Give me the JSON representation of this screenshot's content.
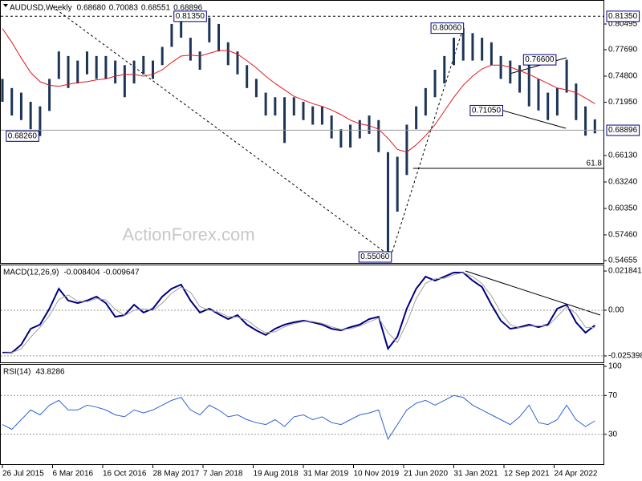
{
  "chart_data": [
    {
      "type": "hilo",
      "title": "AUDUSD,Weekly",
      "header_values": [
        {
          "value": 0.6868,
          "label": "0.68680"
        },
        0.70083,
        0.68551,
        0.68896
      ],
      "watermark": "ActionForex.com",
      "color": "#1c3557",
      "x": [
        0,
        6,
        12,
        18,
        24,
        30,
        36,
        42,
        48,
        54,
        60,
        66,
        72,
        78,
        84,
        90,
        96,
        102,
        108,
        114,
        120,
        126,
        132,
        138,
        144,
        150,
        156,
        162,
        168,
        174,
        180,
        186,
        192,
        198,
        204,
        210,
        216,
        222,
        228,
        234,
        240,
        246,
        252,
        258,
        264,
        270,
        276,
        282,
        288,
        294,
        300,
        306,
        312,
        318,
        324,
        330,
        336,
        342,
        348,
        354,
        360,
        366,
        372,
        378
      ],
      "xlim": [
        0,
        384
      ],
      "high": [
        0.745,
        0.735,
        0.73,
        0.72,
        0.715,
        0.745,
        0.775,
        0.77,
        0.765,
        0.775,
        0.77,
        0.77,
        0.765,
        0.76,
        0.765,
        0.77,
        0.765,
        0.78,
        0.805,
        0.8135,
        0.79,
        0.775,
        0.812,
        0.805,
        0.785,
        0.775,
        0.76,
        0.745,
        0.73,
        0.725,
        0.725,
        0.725,
        0.72,
        0.715,
        0.715,
        0.705,
        0.69,
        0.695,
        0.7,
        0.705,
        0.7,
        0.665,
        0.66,
        0.695,
        0.715,
        0.735,
        0.755,
        0.77,
        0.79,
        0.8006,
        0.795,
        0.79,
        0.785,
        0.77,
        0.765,
        0.76,
        0.766,
        0.745,
        0.73,
        0.735,
        0.766,
        0.74,
        0.715,
        0.70083
      ],
      "low": [
        0.72,
        0.705,
        0.7,
        0.69,
        0.6826,
        0.71,
        0.745,
        0.735,
        0.74,
        0.75,
        0.745,
        0.745,
        0.74,
        0.725,
        0.74,
        0.75,
        0.745,
        0.76,
        0.78,
        0.79,
        0.765,
        0.755,
        0.785,
        0.775,
        0.76,
        0.75,
        0.735,
        0.725,
        0.705,
        0.705,
        0.675,
        0.705,
        0.7,
        0.695,
        0.695,
        0.68,
        0.67,
        0.67,
        0.68,
        0.685,
        0.665,
        0.5506,
        0.6,
        0.64,
        0.69,
        0.705,
        0.725,
        0.74,
        0.76,
        0.765,
        0.765,
        0.765,
        0.76,
        0.745,
        0.74,
        0.73,
        0.715,
        0.7105,
        0.7,
        0.705,
        0.73,
        0.7,
        0.683,
        0.68551
      ],
      "ma_color": "#e0191e",
      "ma_values": [
        0.8,
        0.785,
        0.768,
        0.752,
        0.742,
        0.738,
        0.737,
        0.739,
        0.741,
        0.742,
        0.744,
        0.745,
        0.748,
        0.75,
        0.75,
        0.748,
        0.75,
        0.755,
        0.763,
        0.77,
        0.771,
        0.77,
        0.773,
        0.776,
        0.776,
        0.772,
        0.765,
        0.757,
        0.748,
        0.74,
        0.733,
        0.726,
        0.722,
        0.718,
        0.715,
        0.711,
        0.706,
        0.7,
        0.696,
        0.694,
        0.69,
        0.68,
        0.668,
        0.665,
        0.673,
        0.683,
        0.695,
        0.71,
        0.725,
        0.738,
        0.748,
        0.756,
        0.76,
        0.76,
        0.758,
        0.754,
        0.75,
        0.745,
        0.74,
        0.735,
        0.733,
        0.73,
        0.724,
        0.718
      ],
      "ylim": [
        0.5448,
        0.8242
      ],
      "yticks": [
        0.80495,
        {
          "value": 0.7769,
          "label": "0.77690"
        },
        {
          "value": 0.748,
          "label": "0.74800"
        },
        {
          "value": 0.7195,
          "label": "0.71950"
        },
        {
          "value": 0.6613,
          "label": "0.66130"
        },
        {
          "value": 0.6324,
          "label": "0.63240"
        },
        {
          "value": 0.6035,
          "label": "0.60350"
        },
        {
          "value": 0.5746,
          "label": "0.57460"
        },
        0.54655
      ],
      "hline": {
        "value": 0.8135,
        "label": "0.81350"
      },
      "current": 0.68896,
      "fib_label": 61.8,
      "fib_level": 0.6473,
      "fib_start": 262,
      "annotations": [
        {
          "value": 0.8135,
          "label": "0.81350",
          "x": 130
        },
        {
          "value": 0.8006,
          "label": "0.80060",
          "x": 294
        },
        {
          "value": 0.766,
          "label": "0.76600",
          "x": 353
        },
        {
          "value": 0.7105,
          "label": "0.71050",
          "x": 319
        },
        {
          "value": 0.6826,
          "label": "0.68260",
          "x": 23
        },
        {
          "value": 0.5506,
          "label": "0.55060",
          "x": 248
        }
      ]
    },
    {
      "type": "line",
      "title": "MACD(12,26,9)",
      "header_values": [
        -0.008404,
        -0.009647
      ],
      "series": [
        {
          "color": "#000080",
          "width": 2,
          "values": [
            -0.0236,
            -0.0236,
            -0.0192,
            -0.0103,
            -0.008,
            0.0009,
            0.012,
            0.0054,
            0.004,
            0.0054,
            0.0076,
            0.004,
            -0.0036,
            -0.0027,
            0.0031,
            -0.0013,
            0.0009,
            0.0076,
            0.012,
            0.0143,
            0.0054,
            -0.0013,
            0.0009,
            -0.0022,
            -0.0049,
            -0.0027,
            -0.008,
            -0.0112,
            -0.0138,
            -0.0103,
            -0.008,
            -0.0067,
            -0.0058,
            -0.0067,
            -0.008,
            -0.0103,
            -0.0112,
            -0.0094,
            -0.008,
            -0.0049,
            -0.0036,
            -0.0214,
            -0.0147,
            0.0009,
            0.012,
            0.0187,
            0.0165,
            0.0187,
            0.021,
            0.021,
            0.0165,
            0.0129,
            0.0031,
            -0.0058,
            -0.0103,
            -0.0094,
            -0.008,
            -0.0094,
            -0.008,
            0.0009,
            0.0031,
            -0.0067,
            -0.0125,
            -0.008404
          ]
        },
        {
          "color": "#a0a0a0",
          "width": 1,
          "values": [
            -0.024,
            -0.0236,
            -0.0215,
            -0.015,
            -0.0095,
            -0.003,
            0.006,
            0.0085,
            0.005,
            0.0048,
            0.0065,
            0.0058,
            0.0005,
            -0.003,
            0,
            0.0008,
            -0.0002,
            0.004,
            0.0095,
            0.013,
            0.01,
            0.002,
            0,
            -0.001,
            -0.0035,
            -0.0038,
            -0.0055,
            -0.0095,
            -0.0125,
            -0.012,
            -0.0092,
            -0.0075,
            -0.0063,
            -0.0063,
            -0.0073,
            -0.0092,
            -0.0107,
            -0.0103,
            -0.0088,
            -0.0065,
            -0.0043,
            -0.0125,
            -0.018,
            -0.007,
            0.0065,
            0.015,
            0.0175,
            0.0178,
            0.0198,
            0.021,
            0.0188,
            0.0148,
            0.008,
            -0.0012,
            -0.008,
            -0.0098,
            -0.0088,
            -0.0087,
            -0.0087,
            -0.0035,
            0.002,
            -0.0018,
            -0.0095,
            -0.009647
          ]
        }
      ],
      "ylim": [
        -0.029,
        0.025
      ],
      "yticks": [
        0.021841,
        {
          "value": 0,
          "label": "0.00"
        },
        -0.025398
      ]
    },
    {
      "type": "line",
      "title": "RSI(14)",
      "header_values": [
        43.8286
      ],
      "series": [
        {
          "color": "#2f63d0",
          "width": 1,
          "values": [
            40,
            35,
            45,
            55,
            50,
            60,
            65,
            55,
            55,
            60,
            58,
            55,
            50,
            48,
            55,
            52,
            55,
            60,
            65,
            68,
            55,
            50,
            60,
            55,
            48,
            50,
            45,
            42,
            40,
            45,
            38,
            48,
            50,
            45,
            48,
            42,
            40,
            45,
            50,
            52,
            55,
            25,
            40,
            55,
            62,
            65,
            60,
            65,
            70,
            68,
            60,
            55,
            50,
            45,
            40,
            48,
            60,
            42,
            40,
            45,
            60,
            45,
            38,
            43.8286
          ]
        }
      ],
      "ylim": [
        0,
        100
      ],
      "yticks": [
        100,
        70,
        30
      ],
      "xticks": [
        {
          "value": 0,
          "label": "26 Jul 2015"
        },
        {
          "value": 32,
          "label": "6 Mar 2016"
        },
        {
          "value": 64,
          "label": "16 Oct 2016"
        },
        {
          "value": 96,
          "label": "28 May 2017"
        },
        {
          "value": 128,
          "label": "7 Jan 2018"
        },
        {
          "value": 160,
          "label": "19 Aug 2018"
        },
        {
          "value": 192,
          "label": "31 Mar 2019"
        },
        {
          "value": 224,
          "label": "10 Nov 2019"
        },
        {
          "value": 256,
          "label": "21 Jun 2020"
        },
        {
          "value": 288,
          "label": "31 Jan 2021"
        },
        {
          "value": 320,
          "label": "12 Sep 2021"
        },
        {
          "value": 352,
          "label": "24 Apr 2022"
        }
      ]
    }
  ]
}
